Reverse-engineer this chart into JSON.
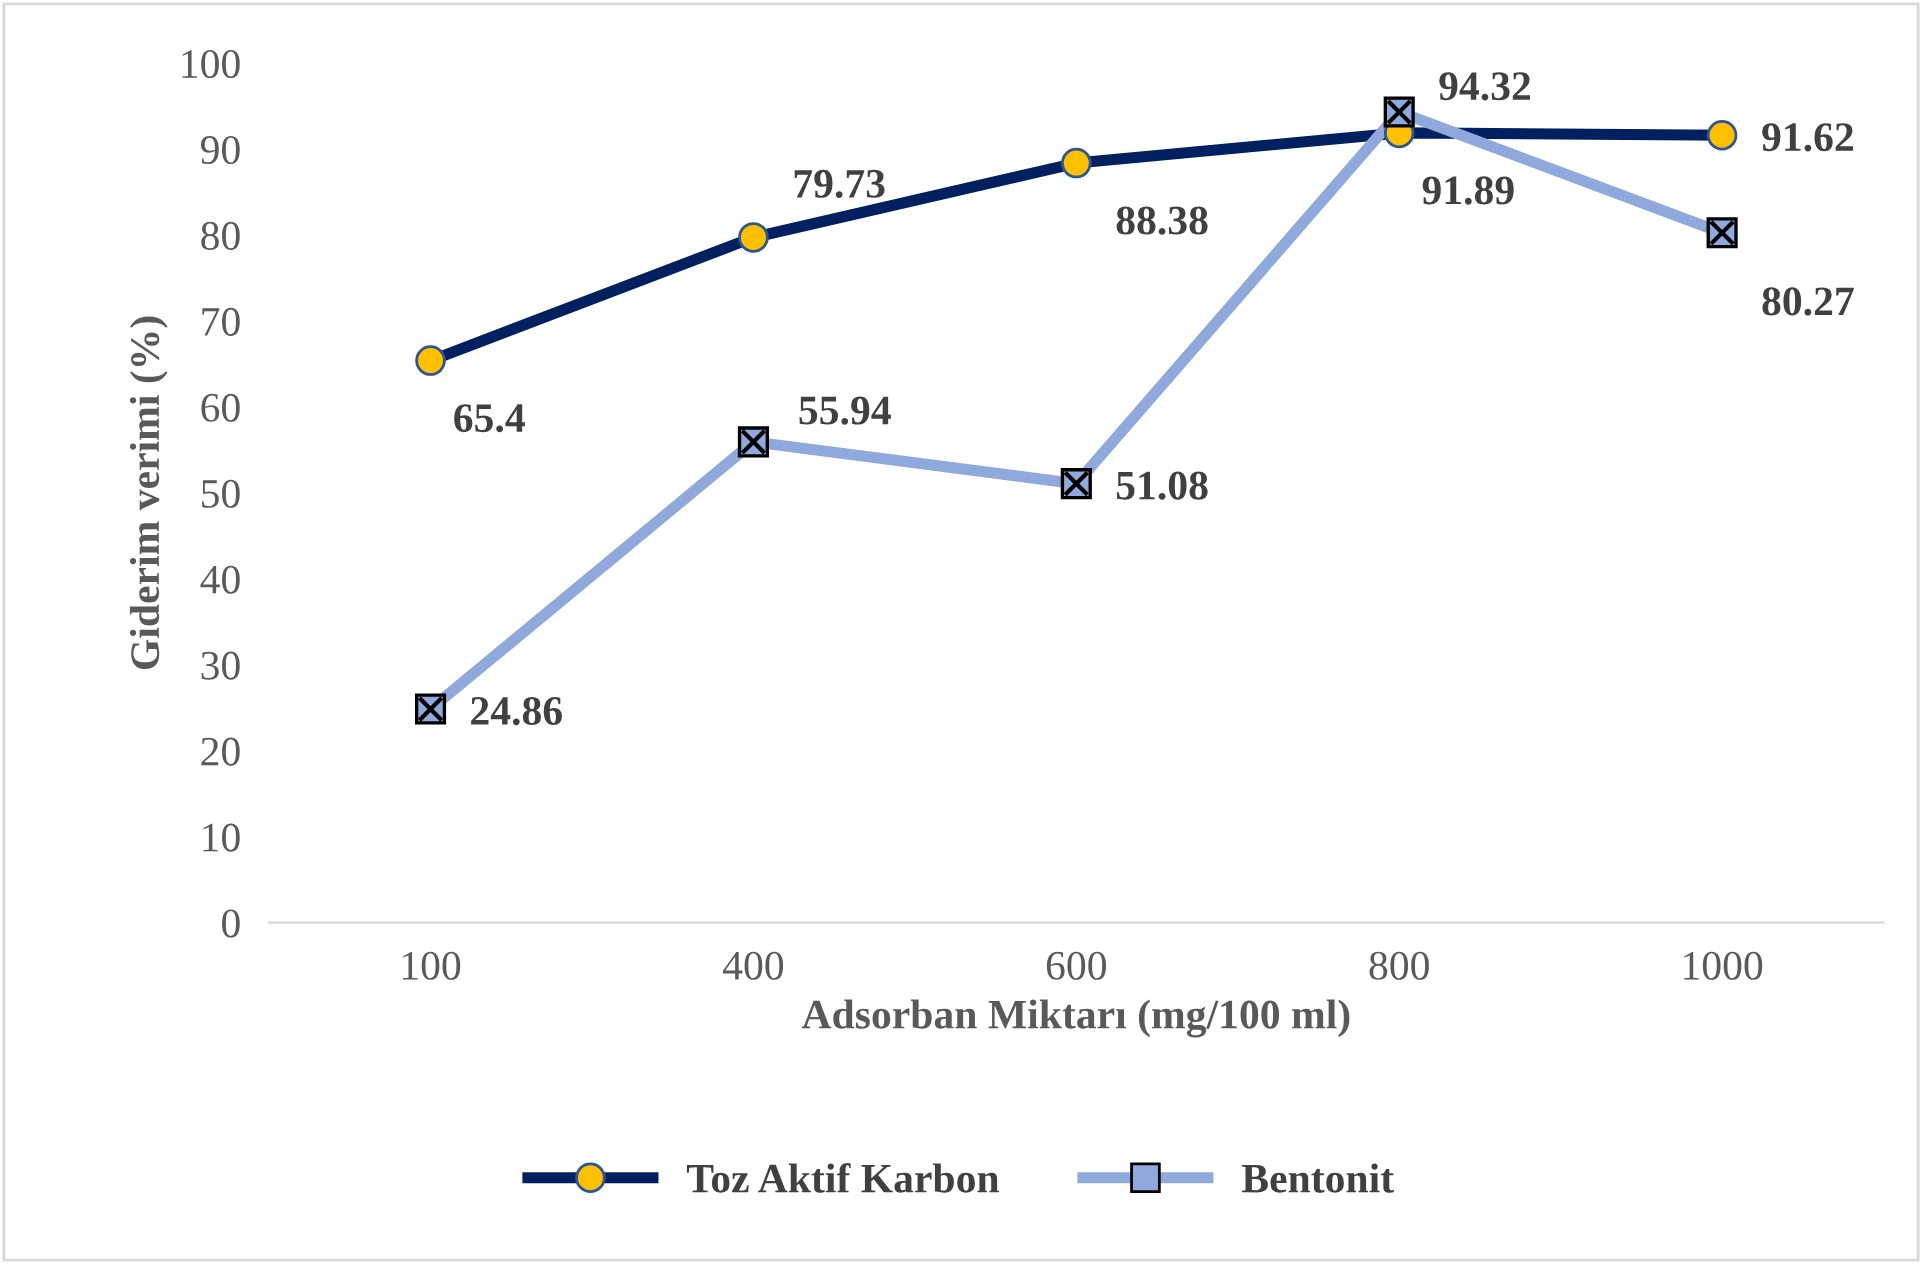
{
  "chart_data": {
    "type": "line",
    "xlabel": "Adsorban Miktarı (mg/100 ml)",
    "ylabel": "Giderim verimi (%)",
    "categories": [
      "100",
      "400",
      "600",
      "800",
      "1000"
    ],
    "series": [
      {
        "name": "Toz Aktif Karbon",
        "color": "#002060",
        "marker": "circle",
        "values": [
          65.4,
          79.73,
          88.38,
          91.89,
          91.62
        ]
      },
      {
        "name": "Bentonit",
        "color": "#8fa9dc",
        "marker": "square",
        "values": [
          24.86,
          55.94,
          51.08,
          94.32,
          80.27
        ]
      }
    ],
    "ylim": [
      0,
      100
    ],
    "yticks": [
      0,
      10,
      20,
      30,
      40,
      50,
      60,
      70,
      80,
      90,
      100
    ],
    "grid": false,
    "legend": "bottom",
    "data_labels": true,
    "line_style": "solid"
  }
}
